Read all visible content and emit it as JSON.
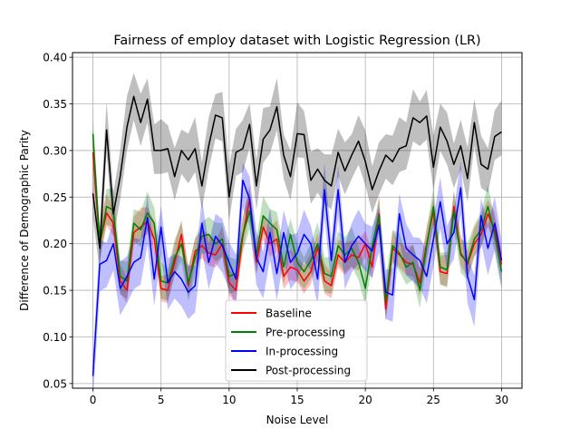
{
  "chart_data": {
    "type": "line",
    "title": "Fairness of employ dataset with Logistic Regression (LR)",
    "xlabel": "Noise Level",
    "ylabel": "Difference of Demographic Parity",
    "xlim": [
      -1.5,
      31.5
    ],
    "ylim": [
      0.045,
      0.405
    ],
    "xticks": [
      0,
      5,
      10,
      15,
      20,
      25,
      30
    ],
    "yticks": [
      0.05,
      0.1,
      0.15,
      0.2,
      0.25,
      0.3,
      0.35,
      0.4
    ],
    "grid": true,
    "legend_position": "lower center",
    "x": [
      0,
      0.5,
      1,
      1.5,
      2,
      2.5,
      3,
      3.5,
      4,
      4.5,
      5,
      5.5,
      6,
      6.5,
      7,
      7.5,
      8,
      8.5,
      9,
      9.5,
      10,
      10.5,
      11,
      11.5,
      12,
      12.5,
      13,
      13.5,
      14,
      14.5,
      15,
      15.5,
      16,
      16.5,
      17,
      17.5,
      18,
      18.5,
      19,
      19.5,
      20,
      20.5,
      21,
      21.5,
      22,
      22.5,
      23,
      23.5,
      24,
      24.5,
      25,
      25.5,
      26,
      26.5,
      27,
      27.5,
      28,
      28.5,
      29,
      29.5,
      30
    ],
    "series": [
      {
        "name": "Baseline",
        "color": "#ff0000",
        "values": [
          0.298,
          0.2,
          0.233,
          0.222,
          0.16,
          0.15,
          0.212,
          0.218,
          0.224,
          0.205,
          0.152,
          0.15,
          0.18,
          0.21,
          0.155,
          0.192,
          0.198,
          0.19,
          0.188,
          0.2,
          0.158,
          0.15,
          0.208,
          0.248,
          0.18,
          0.218,
          0.2,
          0.205,
          0.165,
          0.175,
          0.172,
          0.16,
          0.17,
          0.196,
          0.16,
          0.155,
          0.188,
          0.18,
          0.188,
          0.185,
          0.2,
          0.175,
          0.232,
          0.13,
          0.195,
          0.188,
          0.18,
          0.178,
          0.158,
          0.2,
          0.235,
          0.17,
          0.168,
          0.24,
          0.19,
          0.178,
          0.2,
          0.21,
          0.232,
          0.215,
          0.178
        ],
        "band": 0.017
      },
      {
        "name": "Pre-processing",
        "color": "#008000",
        "values": [
          0.318,
          0.2,
          0.24,
          0.236,
          0.165,
          0.16,
          0.222,
          0.215,
          0.233,
          0.222,
          0.16,
          0.158,
          0.185,
          0.2,
          0.158,
          0.185,
          0.208,
          0.21,
          0.2,
          0.205,
          0.165,
          0.168,
          0.21,
          0.235,
          0.188,
          0.23,
          0.222,
          0.215,
          0.175,
          0.21,
          0.18,
          0.17,
          0.182,
          0.2,
          0.168,
          0.165,
          0.198,
          0.188,
          0.195,
          0.18,
          0.152,
          0.198,
          0.23,
          0.138,
          0.198,
          0.19,
          0.175,
          0.18,
          0.15,
          0.198,
          0.24,
          0.175,
          0.172,
          0.235,
          0.188,
          0.18,
          0.205,
          0.215,
          0.24,
          0.21,
          0.17
        ],
        "band": 0.019
      },
      {
        "name": "In-processing",
        "color": "#0000ff",
        "values": [
          0.058,
          0.178,
          0.182,
          0.2,
          0.152,
          0.165,
          0.18,
          0.185,
          0.228,
          0.162,
          0.218,
          0.158,
          0.17,
          0.162,
          0.148,
          0.155,
          0.222,
          0.18,
          0.208,
          0.198,
          0.18,
          0.162,
          0.268,
          0.248,
          0.185,
          0.17,
          0.212,
          0.168,
          0.212,
          0.18,
          0.19,
          0.21,
          0.2,
          0.162,
          0.258,
          0.182,
          0.258,
          0.18,
          0.198,
          0.208,
          0.2,
          0.192,
          0.22,
          0.148,
          0.145,
          0.232,
          0.195,
          0.188,
          0.182,
          0.165,
          0.205,
          0.245,
          0.2,
          0.212,
          0.26,
          0.165,
          0.14,
          0.23,
          0.195,
          0.222,
          0.182
        ],
        "band": 0.024
      },
      {
        "name": "Post-processing",
        "color": "#000000",
        "values": [
          0.254,
          0.195,
          0.322,
          0.232,
          0.272,
          0.325,
          0.358,
          0.33,
          0.355,
          0.3,
          0.3,
          0.302,
          0.272,
          0.3,
          0.29,
          0.302,
          0.262,
          0.305,
          0.338,
          0.335,
          0.25,
          0.298,
          0.302,
          0.328,
          0.262,
          0.312,
          0.322,
          0.347,
          0.295,
          0.272,
          0.318,
          0.317,
          0.268,
          0.28,
          0.268,
          0.262,
          0.298,
          0.278,
          0.295,
          0.31,
          0.288,
          0.258,
          0.278,
          0.295,
          0.288,
          0.302,
          0.305,
          0.335,
          0.33,
          0.337,
          0.282,
          0.325,
          0.31,
          0.285,
          0.305,
          0.27,
          0.33,
          0.285,
          0.28,
          0.315,
          0.32
        ],
        "band": 0.028
      }
    ]
  }
}
